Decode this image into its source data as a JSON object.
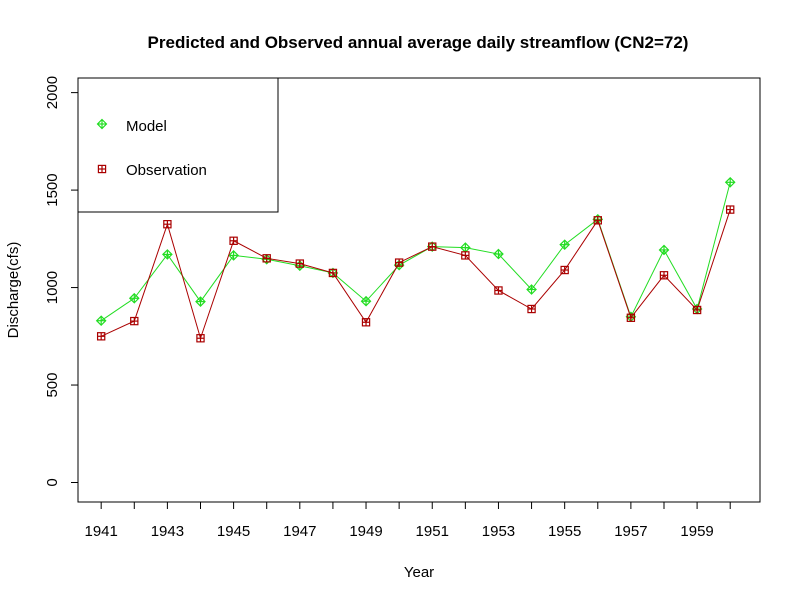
{
  "chart_data": {
    "type": "line",
    "title": "Predicted and Observed annual average daily streamflow (CN2=72)",
    "xlabel": "Year",
    "ylabel": "Discharge(cfs)",
    "xlim": [
      1940.3,
      1960.9
    ],
    "ylim": [
      -100,
      2075
    ],
    "x_ticks": [
      1941,
      1943,
      1945,
      1947,
      1949,
      1951,
      1953,
      1955,
      1957,
      1959
    ],
    "y_ticks": [
      0,
      500,
      1000,
      1500,
      2000
    ],
    "legend_position": "top-left",
    "x": [
      1941,
      1942,
      1943,
      1944,
      1945,
      1946,
      1947,
      1948,
      1949,
      1950,
      1951,
      1952,
      1953,
      1954,
      1955,
      1956,
      1957,
      1958,
      1959,
      1960
    ],
    "series": [
      {
        "name": "Model",
        "color": "#22dd22",
        "marker": "diamond-plus",
        "values": [
          830,
          945,
          1170,
          928,
          1165,
          1145,
          1112,
          1075,
          930,
          1115,
          1210,
          1205,
          1172,
          990,
          1220,
          1350,
          850,
          1193,
          890,
          1540
        ]
      },
      {
        "name": "Observation",
        "color": "#aa0000",
        "marker": "square-plus",
        "values": [
          750,
          828,
          1325,
          740,
          1240,
          1150,
          1123,
          1075,
          822,
          1128,
          1210,
          1165,
          985,
          890,
          1090,
          1345,
          845,
          1063,
          885,
          1400
        ]
      }
    ]
  }
}
